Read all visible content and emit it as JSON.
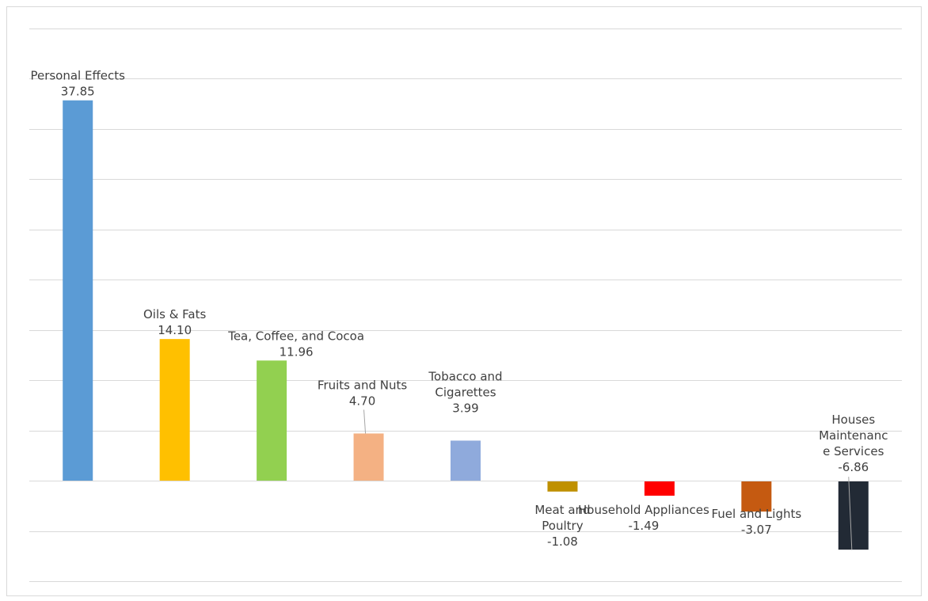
{
  "chart_data": {
    "type": "bar",
    "categories": [
      "Personal Effects",
      "Oils & Fats",
      "Tea, Coffee, and Cocoa",
      "Fruits and Nuts",
      "Tobacco and Cigarettes",
      "Meat and Poultry",
      "Household  Appliances",
      "Fuel and Lights",
      "Houses Maintenance Services"
    ],
    "category_label_lines": [
      [
        "Personal Effects"
      ],
      [
        "Oils & Fats"
      ],
      [
        "Tea, Coffee, and Cocoa"
      ],
      [
        "Fruits and Nuts"
      ],
      [
        "Tobacco and",
        "Cigarettes"
      ],
      [
        "Meat and",
        "Poultry"
      ],
      [
        "Household  Appliances"
      ],
      [
        "Fuel and Lights"
      ],
      [
        "Houses",
        "Maintenanc",
        "e Services"
      ]
    ],
    "values": [
      37.85,
      14.1,
      11.96,
      4.7,
      3.99,
      -1.08,
      -1.49,
      -3.07,
      -6.86
    ],
    "value_labels": [
      "37.85",
      "14.10",
      "11.96",
      "4.70",
      "3.99",
      "-1.08",
      "-1.49",
      "-3.07",
      "-6.86"
    ],
    "colors": [
      "#5b9bd5",
      "#ffc000",
      "#92d050",
      "#f4b183",
      "#8faadc",
      "#bf9000",
      "#ff0000",
      "#c55a11",
      "#222a35"
    ],
    "ylim": [
      -10,
      45
    ],
    "gridlines": true,
    "legend": "none",
    "title": "",
    "xlabel": "",
    "ylabel": ""
  }
}
